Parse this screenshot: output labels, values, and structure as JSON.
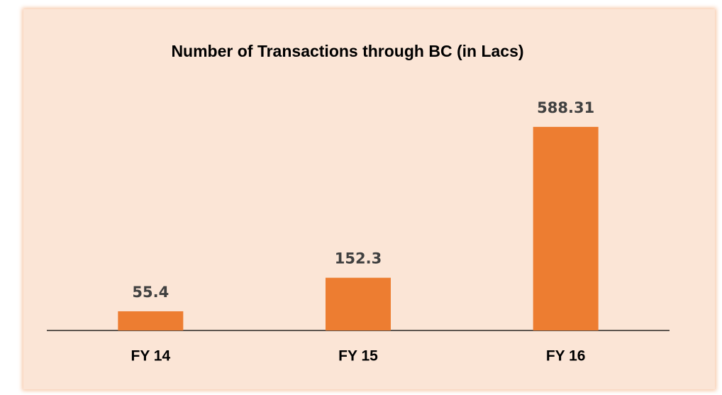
{
  "chart_data": {
    "type": "bar",
    "title": "Number of Transactions  through BC (in Lacs)",
    "categories": [
      "FY 14",
      "FY 15",
      "FY 16"
    ],
    "values": [
      55.4,
      152.3,
      588.31
    ],
    "color": "#ed7d31"
  }
}
